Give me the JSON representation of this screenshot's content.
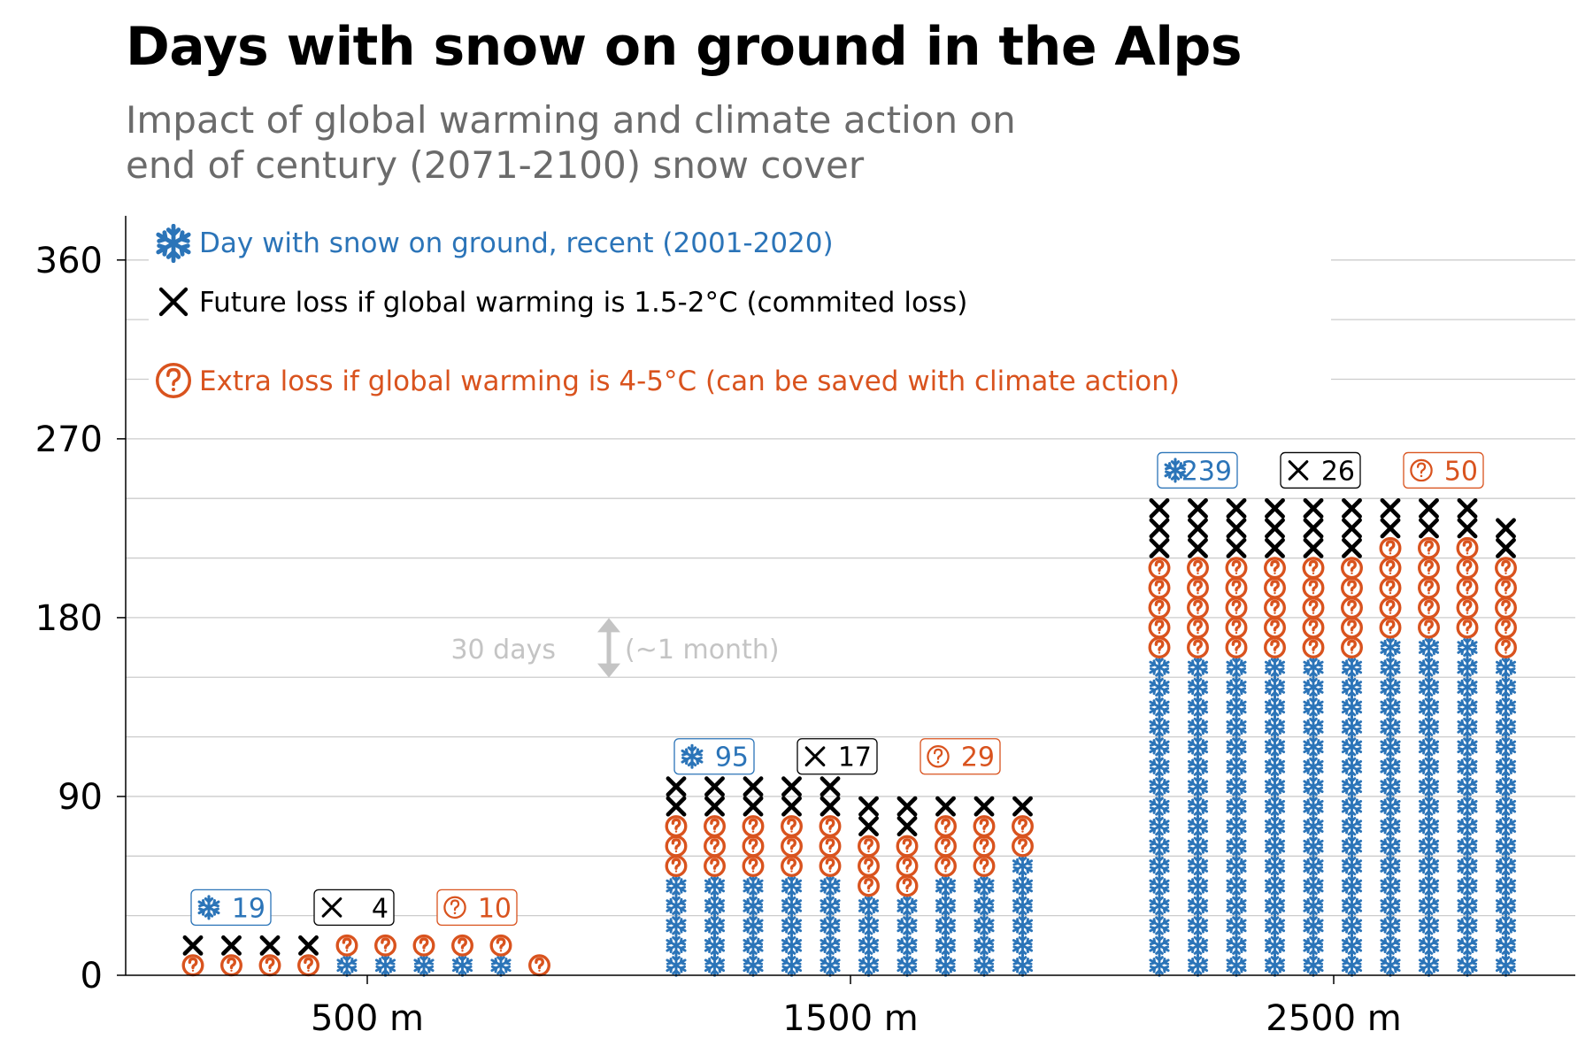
{
  "title": "Days with snow on ground in the Alps",
  "subtitle": "Impact of global warming and climate action on\n end of century (2071-2100) snow cover",
  "legend": {
    "snow": {
      "icon": "snowflake-icon",
      "text": "Day with snow on ground, recent (2001-2020)",
      "color": "#2b74b8"
    },
    "committed": {
      "icon": "x-icon",
      "text": "Future loss if global warming is 1.5-2°C (commited loss)",
      "color": "#000000"
    },
    "extra": {
      "icon": "question-circle-icon",
      "text": "Extra loss if global warming is 4-5°C (can be saved with climate action)",
      "color": "#d9531e"
    }
  },
  "annotation": {
    "left": "30 days",
    "right": "(~1 month)",
    "days": 30,
    "color": "#c4c4c4"
  },
  "colors": {
    "snow": "#2b74b8",
    "committed": "#000000",
    "extra": "#d9531e",
    "grid": "#cccccc",
    "axis": "#000000"
  },
  "chart_data": {
    "type": "bar",
    "unit_days_per_symbol": 10,
    "columns_per_group": 10,
    "categories": [
      "500 m",
      "1500 m",
      "2500 m"
    ],
    "series": [
      {
        "name": "Day with snow on ground, recent (2001-2020)",
        "values": [
          19,
          95,
          239
        ]
      },
      {
        "name": "Future loss if global warming is 1.5-2°C (commited loss)",
        "values": [
          4,
          17,
          26
        ]
      },
      {
        "name": "Extra loss if global warming is 4-5°C (can be saved with climate action)",
        "values": [
          10,
          29,
          50
        ]
      }
    ],
    "badges": [
      {
        "snow": "19",
        "committed": "4",
        "extra": "10"
      },
      {
        "snow": "95",
        "committed": "17",
        "extra": "29"
      },
      {
        "snow": "239",
        "committed": "26",
        "extra": "50"
      }
    ],
    "ylim": [
      0,
      380
    ],
    "yticks": [
      0,
      90,
      180,
      270,
      360
    ],
    "ytick_labels": [
      "0",
      "90",
      "180",
      "270",
      "360"
    ],
    "minor_grid_step": 30,
    "grid": true,
    "legend_position": "top-left",
    "xlabel": "",
    "ylabel": ""
  }
}
